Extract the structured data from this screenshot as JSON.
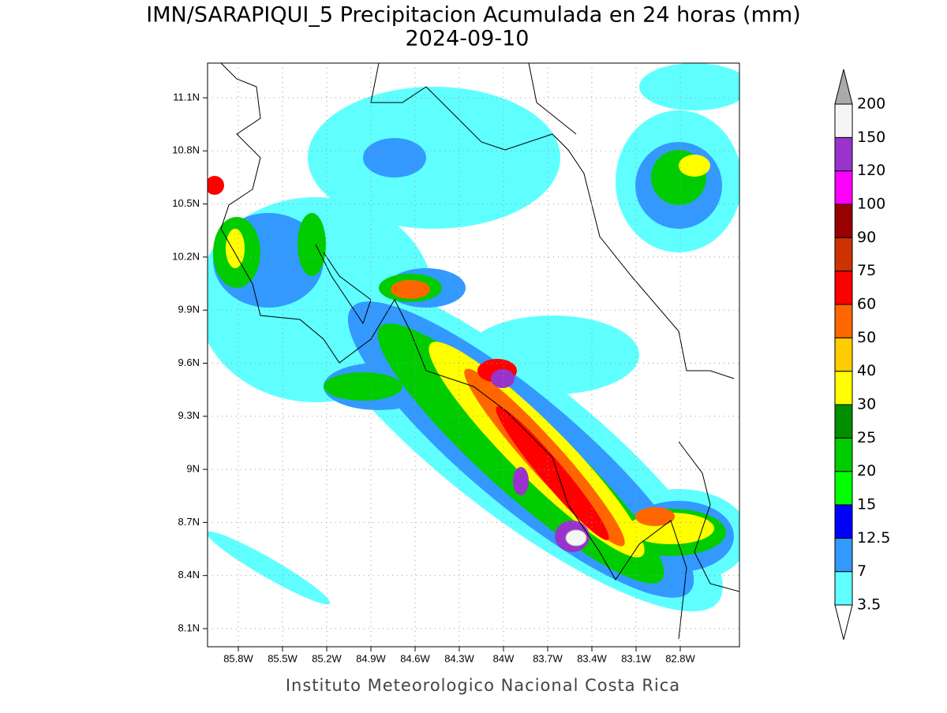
{
  "title": "IMN/SARAPIQUI_5 Precipitacion Acumulada en 24 horas (mm)",
  "subtitle": "2024-09-10",
  "footer": "Instituto Meteorologico Nacional Costa Rica",
  "map": {
    "xticks": [
      "85.8W",
      "85.5W",
      "85.2W",
      "84.9W",
      "84.6W",
      "84.3W",
      "84W",
      "83.7W",
      "83.4W",
      "83.1W",
      "82.8W"
    ],
    "yticks": [
      "11.1N",
      "10.8N",
      "10.5N",
      "10.2N",
      "9.9N",
      "9.6N",
      "9.3N",
      "9N",
      "8.7N",
      "8.4N",
      "8.1N"
    ]
  },
  "colorbar": {
    "levels": [
      3.5,
      7,
      12.5,
      15,
      20,
      25,
      30,
      40,
      50,
      60,
      75,
      90,
      100,
      120,
      150,
      200
    ],
    "colors": [
      "#5fffff",
      "#3399ff",
      "#0000ff",
      "#00ff00",
      "#00cc00",
      "#008f00",
      "#ffff00",
      "#ffcc00",
      "#ff6600",
      "#ff0000",
      "#cc3300",
      "#990000",
      "#ff00ff",
      "#9933cc",
      "#f5f5f5"
    ],
    "under_color": "#ffffff",
    "over_color": "#aaaaaa"
  }
}
